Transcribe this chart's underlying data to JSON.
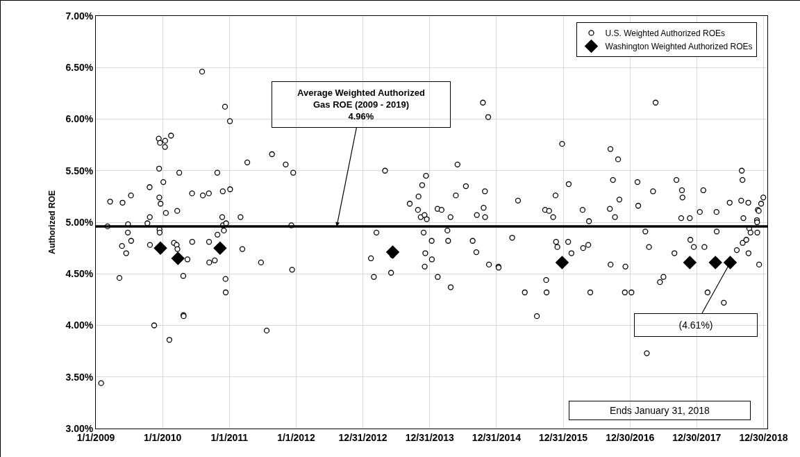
{
  "chart_data": {
    "type": "scatter",
    "ylabel": "Authorized ROE",
    "xlim": [
      "2009-01-01",
      "2019-01-20"
    ],
    "xticks": [
      {
        "value": "2009-01-01",
        "label": "1/1/2009"
      },
      {
        "value": "2010-01-01",
        "label": "1/1/2010"
      },
      {
        "value": "2011-01-01",
        "label": "1/1/2011"
      },
      {
        "value": "2012-01-01",
        "label": "1/1/2012"
      },
      {
        "value": "2012-12-31",
        "label": "12/31/2012"
      },
      {
        "value": "2013-12-31",
        "label": "12/31/2013"
      },
      {
        "value": "2014-12-31",
        "label": "12/31/2014"
      },
      {
        "value": "2015-12-31",
        "label": "12/31/2015"
      },
      {
        "value": "2016-12-30",
        "label": "12/30/2016"
      },
      {
        "value": "2017-12-30",
        "label": "12/30/2017"
      },
      {
        "value": "2018-12-30",
        "label": "12/30/2018"
      }
    ],
    "ylim": [
      3,
      7
    ],
    "yticks": [
      {
        "value": 3,
        "label": "3.00%"
      },
      {
        "value": 3.5,
        "label": "3.50%"
      },
      {
        "value": 4,
        "label": "4.00%"
      },
      {
        "value": 4.5,
        "label": "4.50%"
      },
      {
        "value": 5,
        "label": "5.00%"
      },
      {
        "value": 5.5,
        "label": "5.50%"
      },
      {
        "value": 6,
        "label": "6.00%"
      },
      {
        "value": 6.5,
        "label": "6.50%"
      },
      {
        "value": 7,
        "label": "7.00%"
      }
    ],
    "grid": true,
    "legend": "top right",
    "series": [
      {
        "name": "U.S. Weighted Authorized ROEs",
        "color": "#000000",
        "marker": "circle",
        "x": [
          "2009-01-30",
          "2009-03-06",
          "2009-03-20",
          "2009-05-10",
          "2009-05-24",
          "2009-05-27",
          "2009-06-16",
          "2009-06-26",
          "2009-06-25",
          "2009-07-12",
          "2009-07-13",
          "2009-10-10",
          "2009-10-22",
          "2009-10-23",
          "2009-10-24",
          "2009-11-16",
          "2009-12-11",
          "2009-12-13",
          "2009-12-14",
          "2009-12-15",
          "2009-12-16",
          "2009-12-18",
          "2009-12-21",
          "2010-01-05",
          "2010-01-14",
          "2010-01-15",
          "2010-01-19",
          "2010-02-07",
          "2010-02-16",
          "2010-03-04",
          "2010-03-19",
          "2010-03-22",
          "2010-03-23",
          "2010-04-02",
          "2010-04-24",
          "2010-04-25",
          "2010-04-26",
          "2010-05-17",
          "2010-06-11",
          "2010-06-12",
          "2010-08-05",
          "2010-08-09",
          "2010-09-11",
          "2010-09-12",
          "2010-09-13",
          "2010-10-13",
          "2010-10-27",
          "2010-10-28",
          "2010-11-23",
          "2010-11-26",
          "2010-11-27",
          "2010-12-02",
          "2010-12-08",
          "2010-12-11",
          "2010-12-12",
          "2010-12-14",
          "2011-01-04",
          "2011-01-05",
          "2011-03-03",
          "2011-03-13",
          "2011-04-09",
          "2011-06-23",
          "2011-07-24",
          "2011-08-22",
          "2011-11-05",
          "2011-12-06",
          "2011-12-10",
          "2011-12-16",
          "2013-02-13",
          "2013-03-01",
          "2013-03-15",
          "2013-05-01",
          "2013-06-03",
          "2013-06-10",
          "2013-09-13",
          "2013-10-28",
          "2013-10-31",
          "2013-11-12",
          "2013-11-20",
          "2013-11-28",
          "2013-12-03",
          "2013-12-04",
          "2013-12-07",
          "2013-12-11",
          "2013-12-15",
          "2014-01-11",
          "2014-01-12",
          "2014-02-12",
          "2014-02-13",
          "2014-03-06",
          "2014-04-07",
          "2014-04-11",
          "2014-04-24",
          "2014-04-25",
          "2014-05-23",
          "2014-06-01",
          "2014-07-17",
          "2014-08-23",
          "2014-09-12",
          "2014-09-15",
          "2014-10-18",
          "2014-10-22",
          "2014-10-29",
          "2014-10-30",
          "2014-11-16",
          "2014-11-20",
          "2015-01-11",
          "2015-01-12",
          "2015-03-27",
          "2015-04-28",
          "2015-06-04",
          "2015-08-09",
          "2015-09-23",
          "2015-09-29",
          "2015-10-01",
          "2015-10-15",
          "2015-11-06",
          "2015-11-19",
          "2015-11-22",
          "2015-11-29",
          "2015-12-25",
          "2016-01-27",
          "2016-01-30",
          "2016-02-14",
          "2016-04-15",
          "2016-04-18",
          "2016-05-16",
          "2016-05-20",
          "2016-05-27",
          "2016-09-11",
          "2016-09-14",
          "2016-09-15",
          "2016-09-28",
          "2016-10-09",
          "2016-10-26",
          "2016-11-02",
          "2016-12-02",
          "2016-12-05",
          "2017-01-07",
          "2017-02-09",
          "2017-02-13",
          "2017-03-24",
          "2017-04-01",
          "2017-04-13",
          "2017-05-05",
          "2017-05-19",
          "2017-06-12",
          "2017-07-01",
          "2017-08-30",
          "2017-09-10",
          "2017-10-06",
          "2017-10-10",
          "2017-10-13",
          "2017-11-22",
          "2017-11-25",
          "2017-12-14",
          "2018-01-16",
          "2018-02-04",
          "2018-02-10",
          "2018-02-27",
          "2018-04-17",
          "2018-04-18",
          "2018-05-27",
          "2018-06-28",
          "2018-08-06",
          "2018-08-30",
          "2018-09-02",
          "2018-09-06",
          "2018-09-07",
          "2018-09-11",
          "2018-09-27",
          "2018-10-08",
          "2018-10-09",
          "2018-10-13",
          "2018-10-20",
          "2018-11-24",
          "2018-11-25",
          "2018-11-26",
          "2018-11-29",
          "2018-12-04",
          "2018-12-06",
          "2018-12-17",
          "2018-12-29"
        ],
        "values": [
          3.44,
          4.96,
          5.2,
          4.46,
          4.77,
          5.19,
          4.7,
          4.98,
          4.9,
          5.26,
          4.82,
          4.99,
          5.34,
          5.05,
          4.78,
          4.0,
          5.81,
          5.52,
          5.24,
          4.93,
          4.9,
          5.77,
          5.18,
          5.39,
          5.73,
          5.79,
          5.09,
          3.86,
          5.84,
          4.8,
          4.78,
          5.11,
          4.74,
          5.48,
          4.48,
          4.1,
          4.09,
          4.64,
          5.28,
          4.81,
          6.46,
          5.26,
          5.28,
          4.81,
          4.61,
          4.63,
          5.48,
          4.88,
          5.05,
          5.3,
          4.97,
          4.92,
          6.12,
          4.45,
          4.32,
          4.99,
          5.98,
          5.32,
          5.05,
          4.74,
          5.58,
          4.61,
          3.95,
          5.66,
          5.56,
          4.97,
          4.54,
          5.48,
          4.65,
          4.47,
          4.9,
          5.5,
          4.51,
          4.68,
          5.18,
          5.12,
          5.25,
          5.05,
          5.36,
          4.9,
          5.07,
          4.57,
          4.7,
          5.45,
          5.03,
          4.82,
          4.64,
          5.13,
          4.47,
          5.12,
          4.92,
          4.82,
          5.05,
          4.37,
          5.26,
          5.56,
          5.35,
          4.82,
          4.71,
          5.07,
          6.16,
          5.14,
          5.3,
          5.05,
          6.02,
          4.59,
          4.57,
          4.56,
          4.85,
          5.21,
          4.32,
          4.09,
          5.12,
          4.44,
          4.32,
          5.11,
          5.05,
          5.26,
          4.81,
          4.76,
          5.76,
          4.81,
          5.37,
          4.7,
          5.12,
          4.75,
          4.78,
          5.01,
          4.32,
          5.13,
          5.71,
          4.59,
          5.41,
          5.05,
          5.61,
          5.22,
          4.32,
          4.57,
          4.32,
          5.39,
          5.16,
          4.91,
          3.73,
          4.76,
          5.3,
          6.16,
          4.42,
          4.47,
          4.7,
          5.41,
          5.04,
          5.31,
          5.24,
          5.04,
          4.83,
          4.76,
          5.1,
          5.31,
          4.76,
          4.32,
          5.1,
          4.91,
          4.22,
          5.19,
          4.73,
          5.21,
          5.5,
          5.41,
          4.8,
          5.04,
          4.83,
          5.19,
          4.7,
          4.94,
          4.9,
          5.02,
          5.0,
          4.9,
          5.12,
          5.11,
          4.59,
          5.18,
          5.24
        ]
      },
      {
        "name": "Washington Weighted Authorized ROEs",
        "color": "#000000",
        "marker": "diamond",
        "x": [
          "2009-12-20",
          "2010-03-26",
          "2010-11-11",
          "2013-06-12",
          "2015-12-25",
          "2017-11-22",
          "2018-04-11",
          "2018-07-01"
        ],
        "values": [
          4.75,
          4.65,
          4.75,
          4.71,
          4.61,
          4.61,
          4.61,
          4.61
        ]
      }
    ],
    "ref_lines": [
      {
        "axis": "y",
        "value": 4.96,
        "color": "#000000",
        "line_style": "solid"
      }
    ],
    "annotations": [
      {
        "text": "Average Weighted Authorized\nGas ROE (2009 - 2019)\n4.96%",
        "x": "2012-08-10",
        "y": 4.96
      },
      {
        "text": "(4.61%)",
        "x": "2018-07-01",
        "y": 4.61
      },
      "Ends January 31, 2018"
    ]
  }
}
